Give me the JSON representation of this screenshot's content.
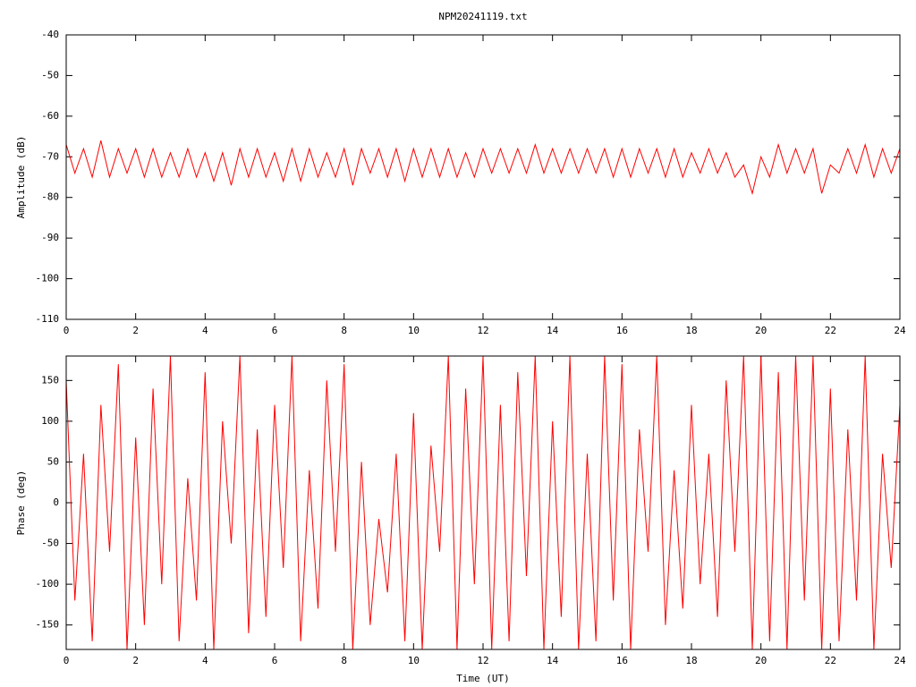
{
  "chart_data": [
    {
      "type": "line",
      "title": "NPM20241119.txt",
      "ylabel": "Amplitude (dB)",
      "color": "#ff0000",
      "x": [
        0,
        0.25,
        0.5,
        0.75,
        1,
        1.25,
        1.5,
        1.75,
        2,
        2.25,
        2.5,
        2.75,
        3,
        3.25,
        3.5,
        3.75,
        4,
        4.25,
        4.5,
        4.75,
        5,
        5.25,
        5.5,
        5.75,
        6,
        6.25,
        6.5,
        6.75,
        7,
        7.25,
        7.5,
        7.75,
        8,
        8.25,
        8.5,
        8.75,
        9,
        9.25,
        9.5,
        9.75,
        10,
        10.25,
        10.5,
        10.75,
        11,
        11.25,
        11.5,
        11.75,
        12,
        12.25,
        12.5,
        12.75,
        13,
        13.25,
        13.5,
        13.75,
        14,
        14.25,
        14.5,
        14.75,
        15,
        15.25,
        15.5,
        15.75,
        16,
        16.25,
        16.5,
        16.75,
        17,
        17.25,
        17.5,
        17.75,
        18,
        18.25,
        18.5,
        18.75,
        19,
        19.25,
        19.5,
        19.75,
        20,
        20.25,
        20.5,
        20.75,
        21,
        21.25,
        21.5,
        21.75,
        22,
        22.25,
        22.5,
        22.75,
        23,
        23.25,
        23.5,
        23.75,
        24
      ],
      "values": [
        -67,
        -74,
        -68,
        -75,
        -66,
        -75,
        -68,
        -74,
        -68,
        -75,
        -68,
        -75,
        -69,
        -75,
        -68,
        -75,
        -69,
        -76,
        -69,
        -77,
        -68,
        -75,
        -68,
        -75,
        -69,
        -76,
        -68,
        -76,
        -68,
        -75,
        -69,
        -75,
        -68,
        -77,
        -68,
        -74,
        -68,
        -75,
        -68,
        -76,
        -68,
        -75,
        -68,
        -75,
        -68,
        -75,
        -69,
        -75,
        -68,
        -74,
        -68,
        -74,
        -68,
        -74,
        -67,
        -74,
        -68,
        -74,
        -68,
        -74,
        -68,
        -74,
        -68,
        -75,
        -68,
        -75,
        -68,
        -74,
        -68,
        -75,
        -68,
        -75,
        -69,
        -74,
        -68,
        -74,
        -69,
        -75,
        -72,
        -79,
        -70,
        -75,
        -67,
        -74,
        -68,
        -74,
        -68,
        -79,
        -72,
        -74,
        -68,
        -74,
        -67,
        -75,
        -68,
        -74,
        -68
      ],
      "xlim": [
        0,
        24
      ],
      "xticks": [
        0,
        2,
        4,
        6,
        8,
        10,
        12,
        14,
        16,
        18,
        20,
        22,
        24
      ],
      "ylim": [
        -110,
        -40
      ],
      "yticks": [
        -40,
        -50,
        -60,
        -70,
        -80,
        -90,
        -100,
        -110
      ]
    },
    {
      "type": "line",
      "ylabel": "Phase (deg)",
      "xlabel": "Time (UT)",
      "color": "#ff0000",
      "x": [
        0,
        0.25,
        0.5,
        0.75,
        1,
        1.25,
        1.5,
        1.75,
        2,
        2.25,
        2.5,
        2.75,
        3,
        3.25,
        3.5,
        3.75,
        4,
        4.25,
        4.5,
        4.75,
        5,
        5.25,
        5.5,
        5.75,
        6,
        6.25,
        6.5,
        6.75,
        7,
        7.25,
        7.5,
        7.75,
        8,
        8.25,
        8.5,
        8.75,
        9,
        9.25,
        9.5,
        9.75,
        10,
        10.25,
        10.5,
        10.75,
        11,
        11.25,
        11.5,
        11.75,
        12,
        12.25,
        12.5,
        12.75,
        13,
        13.25,
        13.5,
        13.75,
        14,
        14.25,
        14.5,
        14.75,
        15,
        15.25,
        15.5,
        15.75,
        16,
        16.25,
        16.5,
        16.75,
        17,
        17.25,
        17.5,
        17.75,
        18,
        18.25,
        18.5,
        18.75,
        19,
        19.25,
        19.5,
        19.75,
        20,
        20.25,
        20.5,
        20.75,
        21,
        21.25,
        21.5,
        21.75,
        22,
        22.25,
        22.5,
        22.75,
        23,
        23.25,
        23.5,
        23.75,
        24
      ],
      "values": [
        150,
        -120,
        60,
        -170,
        120,
        -60,
        170,
        -180,
        80,
        -150,
        140,
        -100,
        180,
        -170,
        30,
        -120,
        160,
        -180,
        100,
        -50,
        180,
        -160,
        90,
        -140,
        120,
        -80,
        180,
        -170,
        40,
        -130,
        150,
        -60,
        170,
        -180,
        50,
        -150,
        -20,
        -110,
        60,
        -170,
        110,
        -180,
        70,
        -60,
        180,
        -180,
        140,
        -100,
        180,
        -180,
        120,
        -170,
        160,
        -90,
        180,
        -180,
        100,
        -140,
        180,
        -180,
        60,
        -170,
        180,
        -120,
        170,
        -180,
        90,
        -60,
        180,
        -150,
        40,
        -130,
        120,
        -100,
        60,
        -140,
        150,
        -60,
        180,
        -180,
        180,
        -170,
        160,
        -180,
        180,
        -120,
        180,
        -180,
        140,
        -170,
        90,
        -120,
        180,
        -180,
        60,
        -80,
        120
      ],
      "xlim": [
        0,
        24
      ],
      "xticks": [
        0,
        2,
        4,
        6,
        8,
        10,
        12,
        14,
        16,
        18,
        20,
        22,
        24
      ],
      "ylim": [
        -180,
        180
      ],
      "yticks": [
        -150,
        -100,
        -50,
        0,
        50,
        100,
        150
      ]
    }
  ]
}
